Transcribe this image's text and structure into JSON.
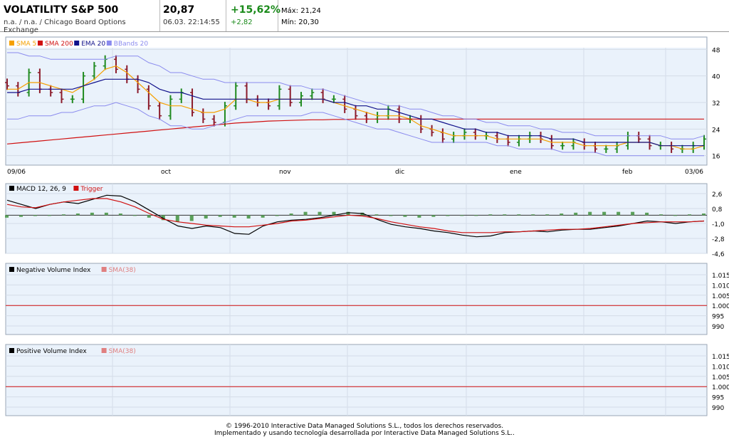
{
  "header": {
    "name": "VOLATILITY S&P 500",
    "exchange": "n.a. / n.a. / Chicago Board Options Exchange",
    "price": "20,87",
    "datetime": "06.03. 22:14:55",
    "change_pct": "+15,62%",
    "change_abs": "+2,82",
    "max": "Máx: 21,24",
    "min": "Mín: 20,30"
  },
  "panels": {
    "main": {
      "legend": [
        {
          "label": "SMA 5",
          "color": "#f5a000"
        },
        {
          "label": "SMA 200",
          "color": "#d01010"
        },
        {
          "label": "EMA 20",
          "color": "#10108a"
        },
        {
          "label": "BBands 20",
          "color": "#8a8aee"
        }
      ],
      "yticks": [
        "48",
        "40",
        "32",
        "24",
        "16"
      ],
      "xticks": [
        "09/06",
        "oct",
        "nov",
        "dic",
        "ene",
        "feb",
        "03/06"
      ]
    },
    "macd": {
      "legend": [
        {
          "label": "MACD 12, 26, 9",
          "color": "#000000"
        },
        {
          "label": "Trigger",
          "color": "#d01010"
        }
      ],
      "yticks": [
        "2,6",
        "0,8",
        "-1,0",
        "-2,8",
        "-4,6"
      ]
    },
    "nvi": {
      "legend": [
        {
          "label": "Negative Volume Index",
          "color": "#000000"
        },
        {
          "label": "SMA(38)",
          "color": "#e08080"
        }
      ],
      "yticks": [
        "1.015",
        "1.010",
        "1.005",
        "1.000",
        "995",
        "990"
      ]
    },
    "pvi": {
      "legend": [
        {
          "label": "Positive Volume Index",
          "color": "#000000"
        },
        {
          "label": "SMA(38)",
          "color": "#e08080"
        }
      ],
      "yticks": [
        "1.015",
        "1.010",
        "1.005",
        "1.000",
        "995",
        "990"
      ]
    }
  },
  "footer": {
    "line1": "© 1996-2010 Interactive Data Managed Solutions S.L., todos los derechos reservados.",
    "line2": "Implementado y usando tecnología desarrollada por Interactive Data Managed Solutions S.L.."
  },
  "chart_data": [
    {
      "type": "candlestick",
      "title": "VOLATILITY S&P 500",
      "ylim": [
        14,
        50
      ],
      "x_labels": [
        "09/06",
        "oct",
        "nov",
        "dic",
        "ene",
        "feb",
        "03/06"
      ],
      "close_values": [
        37,
        35,
        41,
        36,
        35,
        33,
        33,
        40,
        43,
        45,
        42,
        39,
        36,
        31,
        28,
        33,
        35,
        29,
        27,
        26,
        31,
        37,
        33,
        32,
        31,
        36,
        32,
        34,
        35,
        33,
        33,
        30,
        28,
        27,
        28,
        30,
        27,
        27,
        24,
        23,
        21,
        22,
        23,
        22,
        22,
        21,
        20,
        21,
        22,
        21,
        19,
        19,
        20,
        19,
        18,
        18,
        19,
        22,
        21,
        19,
        19,
        18,
        18,
        19,
        21
      ],
      "series": [
        {
          "name": "SMA 5",
          "values": [
            36,
            36,
            38,
            38,
            37,
            36,
            35,
            37,
            39,
            42,
            43,
            41,
            38,
            35,
            32,
            31,
            31,
            30,
            29,
            29,
            30,
            33,
            33,
            32,
            32,
            33,
            33,
            33,
            33,
            33,
            32,
            31,
            30,
            29,
            28,
            28,
            28,
            27,
            25,
            24,
            23,
            22,
            22,
            22,
            22,
            21,
            21,
            21,
            21,
            21,
            20,
            20,
            20,
            19,
            19,
            19,
            19,
            20,
            20,
            20,
            19,
            19,
            18,
            18,
            19
          ]
        },
        {
          "name": "SMA 200",
          "values": [
            19.5,
            19.8,
            20.1,
            20.4,
            20.7,
            21,
            21.3,
            21.6,
            21.9,
            22.2,
            22.5,
            22.8,
            23.1,
            23.4,
            23.7,
            24,
            24.3,
            24.6,
            24.9,
            25.2,
            25.5,
            25.8,
            26,
            26.2,
            26.4,
            26.5,
            26.6,
            26.7,
            26.8,
            26.8,
            26.9,
            26.9,
            27,
            27,
            27,
            27,
            27,
            27,
            27,
            27,
            27,
            27,
            27,
            27,
            27,
            27,
            27,
            27,
            27,
            27,
            27,
            27,
            27,
            27,
            27,
            27,
            27,
            27,
            27,
            27,
            27,
            27,
            27,
            27,
            27
          ]
        },
        {
          "name": "EMA 20",
          "values": [
            35,
            35,
            36,
            36,
            36,
            36,
            36,
            37,
            38,
            39,
            39,
            39,
            39,
            38,
            36,
            35,
            35,
            34,
            33,
            33,
            33,
            33,
            33,
            33,
            33,
            33,
            33,
            33,
            33,
            33,
            32,
            32,
            31,
            31,
            30,
            30,
            29,
            28,
            27,
            27,
            26,
            25,
            24,
            24,
            23,
            23,
            22,
            22,
            22,
            22,
            21,
            21,
            21,
            20,
            20,
            20,
            20,
            20,
            20,
            20,
            19,
            19,
            19,
            19,
            19
          ]
        },
        {
          "name": "BBands 20",
          "values": [
            47,
            47,
            46,
            46,
            45,
            45,
            45,
            45,
            45,
            45,
            46,
            46,
            46,
            44,
            43,
            41,
            41,
            40,
            39,
            39,
            38,
            38,
            38,
            38,
            38,
            38,
            37,
            37,
            36,
            36,
            35,
            34,
            33,
            32,
            32,
            31,
            31,
            30,
            30,
            29,
            28,
            28,
            27,
            27,
            26,
            26,
            25,
            25,
            25,
            24,
            24,
            23,
            23,
            23,
            22,
            22,
            22,
            22,
            22,
            22,
            22,
            21,
            21,
            21,
            22
          ]
        },
        {
          "name": "BBands 20",
          "values": [
            27,
            27,
            28,
            28,
            28,
            29,
            29,
            30,
            31,
            31,
            32,
            31,
            30,
            28,
            27,
            25,
            25,
            24,
            24,
            25,
            26,
            27,
            28,
            28,
            28,
            28,
            28,
            28,
            29,
            29,
            28,
            27,
            26,
            25,
            24,
            24,
            23,
            22,
            21,
            20,
            20,
            20,
            20,
            20,
            20,
            19,
            19,
            18,
            18,
            18,
            18,
            17,
            17,
            17,
            17,
            16,
            16,
            16,
            16,
            16,
            16,
            16,
            16,
            16,
            16
          ]
        }
      ]
    },
    {
      "type": "line",
      "title": "MACD 12, 26, 9",
      "ylim": [
        -4.6,
        2.6
      ],
      "series": [
        {
          "name": "MACD 12, 26, 9",
          "values": [
            1.8,
            1.3,
            0.8,
            1.3,
            1.6,
            1.4,
            1.9,
            2.4,
            2.3,
            1.6,
            0.6,
            -0.4,
            -1.3,
            -1.6,
            -1.3,
            -1.5,
            -2.2,
            -2.3,
            -1.3,
            -0.8,
            -0.6,
            -0.5,
            -0.3,
            0.0,
            0.3,
            0.2,
            -0.5,
            -1.1,
            -1.4,
            -1.6,
            -1.9,
            -2.1,
            -2.4,
            -2.6,
            -2.5,
            -2.1,
            -2.0,
            -1.9,
            -2.0,
            -1.8,
            -1.7,
            -1.7,
            -1.5,
            -1.3,
            -1.0,
            -0.7,
            -0.8,
            -1.0,
            -0.8,
            -0.7
          ]
        },
        {
          "name": "Trigger",
          "values": [
            1.3,
            1.0,
            0.9,
            1.3,
            1.6,
            1.8,
            2.0,
            2.0,
            1.6,
            1.0,
            0.2,
            -0.5,
            -0.8,
            -1.0,
            -1.2,
            -1.3,
            -1.4,
            -1.4,
            -1.2,
            -1.0,
            -0.7,
            -0.6,
            -0.4,
            -0.2,
            0.0,
            -0.1,
            -0.4,
            -0.8,
            -1.1,
            -1.4,
            -1.6,
            -1.9,
            -2.1,
            -2.1,
            -2.1,
            -2.0,
            -2.0,
            -1.9,
            -1.8,
            -1.7,
            -1.7,
            -1.6,
            -1.4,
            -1.2,
            -1.0,
            -0.9,
            -0.8,
            -0.8,
            -0.8,
            -0.7
          ]
        },
        {
          "name": "Histogram",
          "values": [
            -0.3,
            -0.2,
            -0.1,
            0.0,
            0.1,
            0.2,
            0.3,
            0.3,
            0.2,
            0.0,
            -0.3,
            -0.6,
            -0.8,
            -0.7,
            -0.4,
            -0.2,
            -0.3,
            -0.4,
            -0.3,
            -0.1,
            0.2,
            0.4,
            0.4,
            0.4,
            0.4,
            0.3,
            0.1,
            -0.1,
            -0.2,
            -0.3,
            -0.2,
            -0.1,
            0.0,
            0.0,
            0.1,
            0.1,
            0.1,
            0.1,
            0.1,
            0.2,
            0.3,
            0.4,
            0.4,
            0.4,
            0.4,
            0.3,
            0.1,
            0.0,
            0.1,
            0.2
          ]
        }
      ]
    }
  ]
}
